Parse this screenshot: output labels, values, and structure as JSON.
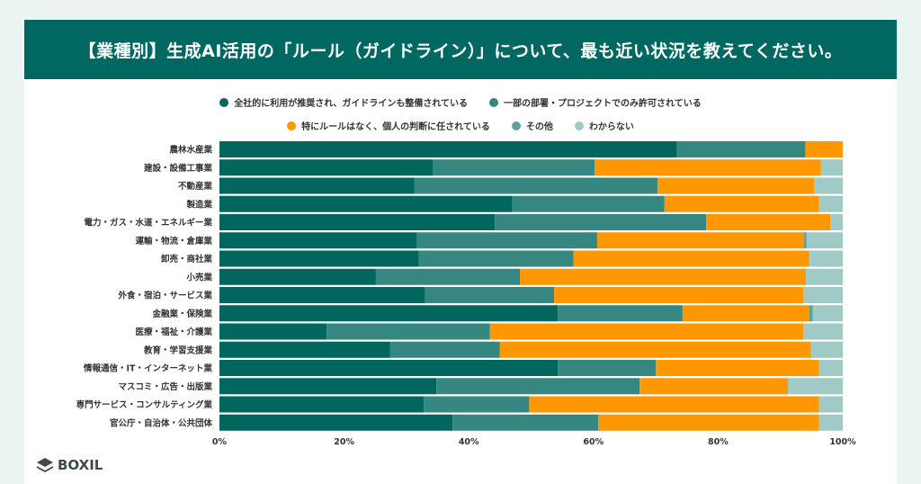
{
  "title": "【業種別】生成AI活用の「ルール（ガイドライン）」について、最も近い状況を教えてください。",
  "logo_text": "BOXIL",
  "chart_data": {
    "type": "bar",
    "orientation": "horizontal",
    "stacked": true,
    "legend_position": "top",
    "xlim": [
      0,
      100
    ],
    "x_ticks": [
      "0%",
      "20%",
      "40%",
      "60%",
      "80%",
      "100%"
    ],
    "grid": true,
    "categories": [
      "農林水産業",
      "建設・設備工事業",
      "不動産業",
      "製造業",
      "電力・ガス・水道・エネルギー業",
      "運輸・物流・倉庫業",
      "卸売・商社業",
      "小売業",
      "外食・宿泊・サービス業",
      "金融業・保険業",
      "医療・福祉・介護業",
      "教育・学習支援業",
      "情報通信・IT・インターネット業",
      "マスコミ・広告・出版業",
      "専門サービス・コンサルティング業",
      "官公庁・自治体・公共団体"
    ],
    "series": [
      {
        "name": "全社的に利用が推奨され、ガイドラインも整備されている",
        "color": "#00665e",
        "values": [
          73.4,
          34.2,
          31.3,
          47.0,
          44.2,
          31.6,
          32.0,
          25.1,
          33.0,
          54.3,
          17.2,
          27.4,
          54.3,
          34.8,
          32.8,
          37.4
        ]
      },
      {
        "name": "一部の部署・プロジェクトでのみ許可されている",
        "color": "#368781",
        "values": [
          20.6,
          26.0,
          39.0,
          24.4,
          33.9,
          29.0,
          24.8,
          23.1,
          20.7,
          20.0,
          26.2,
          17.6,
          15.7,
          32.6,
          16.9,
          23.4
        ]
      },
      {
        "name": "特にルールはなく、個人の判断に任されている",
        "color": "#ff9800",
        "values": [
          6.0,
          36.3,
          25.1,
          24.8,
          19.9,
          33.2,
          37.8,
          45.9,
          40.0,
          20.3,
          50.3,
          49.9,
          26.2,
          23.8,
          46.5,
          35.4
        ]
      },
      {
        "name": "その他",
        "color": "#5ea29c",
        "values": [
          0,
          0,
          0,
          0,
          0,
          0.4,
          0,
          0,
          0,
          0.6,
          0,
          0,
          0,
          0,
          0,
          0
        ]
      },
      {
        "name": "わからない",
        "color": "#9fcac6",
        "values": [
          0,
          3.5,
          4.6,
          3.8,
          2.0,
          5.8,
          5.4,
          5.9,
          6.3,
          4.8,
          6.3,
          5.1,
          3.8,
          8.8,
          3.8,
          3.8
        ]
      }
    ]
  }
}
